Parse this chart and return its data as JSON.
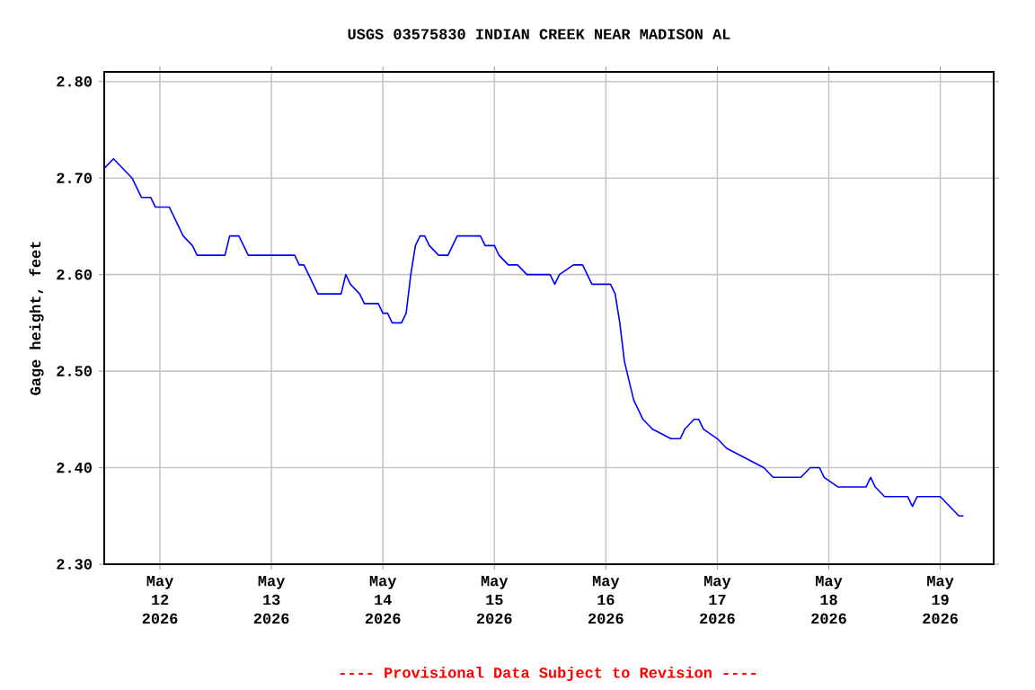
{
  "chart_data": {
    "type": "line",
    "title": "USGS 03575830 INDIAN CREEK NEAR MADISON AL",
    "ylabel": "Gage height, feet",
    "annotations": [
      "---- Provisional Data Subject to Revision ----"
    ],
    "x": [
      "2026-05-11T12:00",
      "2026-05-11T14:00",
      "2026-05-11T16:00",
      "2026-05-11T18:00",
      "2026-05-11T19:00",
      "2026-05-11T20:00",
      "2026-05-11T22:00",
      "2026-05-11T23:00",
      "2026-05-12T02:00",
      "2026-05-12T03:00",
      "2026-05-12T04:00",
      "2026-05-12T05:00",
      "2026-05-12T07:00",
      "2026-05-12T08:00",
      "2026-05-12T14:00",
      "2026-05-12T15:00",
      "2026-05-12T17:00",
      "2026-05-12T18:00",
      "2026-05-12T19:00",
      "2026-05-13T05:00",
      "2026-05-13T06:00",
      "2026-05-13T07:00",
      "2026-05-13T08:00",
      "2026-05-13T09:00",
      "2026-05-13T10:00",
      "2026-05-13T15:00",
      "2026-05-13T16:00",
      "2026-05-13T17:00",
      "2026-05-13T19:00",
      "2026-05-13T20:00",
      "2026-05-13T23:00",
      "2026-05-14T00:00",
      "2026-05-14T01:00",
      "2026-05-14T02:00",
      "2026-05-14T04:00",
      "2026-05-14T05:00",
      "2026-05-14T06:00",
      "2026-05-14T07:00",
      "2026-05-14T08:00",
      "2026-05-14T09:00",
      "2026-05-14T10:00",
      "2026-05-14T12:00",
      "2026-05-14T14:00",
      "2026-05-14T15:00",
      "2026-05-14T16:00",
      "2026-05-14T21:00",
      "2026-05-14T22:00",
      "2026-05-15T00:00",
      "2026-05-15T01:00",
      "2026-05-15T03:00",
      "2026-05-15T05:00",
      "2026-05-15T07:00",
      "2026-05-15T12:00",
      "2026-05-15T13:00",
      "2026-05-15T14:00",
      "2026-05-15T17:00",
      "2026-05-15T19:00",
      "2026-05-15T20:00",
      "2026-05-15T21:00",
      "2026-05-16T01:00",
      "2026-05-16T02:00",
      "2026-05-16T03:00",
      "2026-05-16T04:00",
      "2026-05-16T05:00",
      "2026-05-16T06:00",
      "2026-05-16T07:00",
      "2026-05-16T08:00",
      "2026-05-16T10:00",
      "2026-05-16T14:00",
      "2026-05-16T16:00",
      "2026-05-16T17:00",
      "2026-05-16T19:00",
      "2026-05-16T20:00",
      "2026-05-16T21:00",
      "2026-05-17T00:00",
      "2026-05-17T02:00",
      "2026-05-17T06:00",
      "2026-05-17T10:00",
      "2026-05-17T12:00",
      "2026-05-17T18:00",
      "2026-05-17T20:00",
      "2026-05-17T22:00",
      "2026-05-17T23:00",
      "2026-05-18T02:00",
      "2026-05-18T08:00",
      "2026-05-18T09:00",
      "2026-05-18T10:00",
      "2026-05-18T12:00",
      "2026-05-18T17:00",
      "2026-05-18T18:00",
      "2026-05-18T19:00",
      "2026-05-19T00:00",
      "2026-05-19T02:00",
      "2026-05-19T04:00",
      "2026-05-19T05:00"
    ],
    "series": [
      {
        "color": "#0000ff",
        "values": [
          2.71,
          2.72,
          2.71,
          2.7,
          2.69,
          2.68,
          2.68,
          2.67,
          2.67,
          2.66,
          2.65,
          2.64,
          2.63,
          2.62,
          2.62,
          2.64,
          2.64,
          2.63,
          2.62,
          2.62,
          2.61,
          2.61,
          2.6,
          2.59,
          2.58,
          2.58,
          2.6,
          2.59,
          2.58,
          2.57,
          2.57,
          2.56,
          2.56,
          2.55,
          2.55,
          2.56,
          2.6,
          2.63,
          2.64,
          2.64,
          2.63,
          2.62,
          2.62,
          2.63,
          2.64,
          2.64,
          2.63,
          2.63,
          2.62,
          2.61,
          2.61,
          2.6,
          2.6,
          2.59,
          2.6,
          2.61,
          2.61,
          2.6,
          2.59,
          2.59,
          2.58,
          2.55,
          2.51,
          2.49,
          2.47,
          2.46,
          2.45,
          2.44,
          2.43,
          2.43,
          2.44,
          2.45,
          2.45,
          2.44,
          2.43,
          2.42,
          2.41,
          2.4,
          2.39,
          2.39,
          2.4,
          2.4,
          2.39,
          2.38,
          2.38,
          2.39,
          2.38,
          2.37,
          2.37,
          2.36,
          2.37,
          2.37,
          2.36,
          2.35,
          2.35
        ]
      }
    ],
    "xlim": [
      "2026-05-11T12:00",
      "2026-05-19T11:30"
    ],
    "xticks": [
      {
        "value": "2026-05-12",
        "label": "May 12 2026"
      },
      {
        "value": "2026-05-13",
        "label": "May 13 2026"
      },
      {
        "value": "2026-05-14",
        "label": "May 14 2026"
      },
      {
        "value": "2026-05-15",
        "label": "May 15 2026"
      },
      {
        "value": "2026-05-16",
        "label": "May 16 2026"
      },
      {
        "value": "2026-05-17",
        "label": "May 17 2026"
      },
      {
        "value": "2026-05-18",
        "label": "May 18 2026"
      },
      {
        "value": "2026-05-19",
        "label": "May 19 2026"
      }
    ],
    "ylim": [
      2.3,
      2.81
    ],
    "yticks": [
      {
        "value": 2.3,
        "label": "2.30"
      },
      {
        "value": 2.4,
        "label": "2.40"
      },
      {
        "value": 2.5,
        "label": "2.50"
      },
      {
        "value": 2.6,
        "label": "2.60"
      },
      {
        "value": 2.7,
        "label": "2.70"
      },
      {
        "value": 2.8,
        "label": "2.80"
      }
    ],
    "grid": true,
    "marker": "none",
    "line_style": "solid"
  }
}
